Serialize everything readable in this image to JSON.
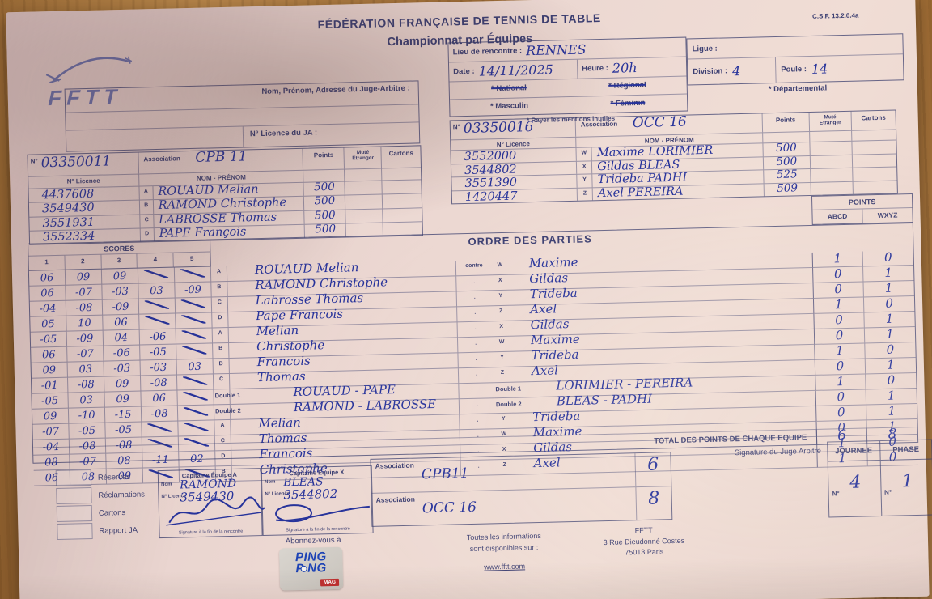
{
  "header": {
    "federation": "FÉDÉRATION FRANÇAISE DE TENNIS DE TABLE",
    "championship": "Championnat par Équipes",
    "form_ref": "C.S.F. 13.2.0.4a",
    "logo_text": "FFTT"
  },
  "judge": {
    "label": "Nom, Prénom, Adresse du Juge-Arbitre :",
    "licence_label": "N° Licence du JA :"
  },
  "match": {
    "lieu_label": "Lieu de rencontre :",
    "lieu": "RENNES",
    "date_label": "Date :",
    "date": "14/11/2025",
    "heure_label": "Heure :",
    "heure": "20h",
    "national": "* National",
    "regional": "* Régional",
    "masculin": "* Masculin",
    "feminin": "* Féminin",
    "rayer_note": "* Rayer les mentions inutiles",
    "ligue_label": "Ligue :",
    "division_label": "Division :",
    "division": "4",
    "poule_label": "Poule :",
    "poule": "14",
    "departemental": "* Départemental"
  },
  "team_headers": {
    "numero_label": "N°",
    "licence_label": "N° Licence",
    "association_label": "Association",
    "nom_label": "NOM - PRÉNOM",
    "points_label": "Points",
    "mute_label": "Muté",
    "etranger_label": "Etranger",
    "cartons_label": "Cartons"
  },
  "team_a": {
    "numero": "03350011",
    "association": "CPB 11",
    "players": [
      {
        "licence": "4437608",
        "letter": "A",
        "name": "ROUAUD Melian",
        "points": "500"
      },
      {
        "licence": "3549430",
        "letter": "B",
        "name": "RAMOND Christophe",
        "points": "500"
      },
      {
        "licence": "3551931",
        "letter": "C",
        "name": "LABROSSE Thomas",
        "points": "500"
      },
      {
        "licence": "3552334",
        "letter": "D",
        "name": "PAPE François",
        "points": "500"
      }
    ]
  },
  "team_x": {
    "numero": "03350016",
    "association": "OCC 16",
    "players": [
      {
        "licence": "3552000",
        "letter": "W",
        "name": "Maxime LORIMIER",
        "points": "500"
      },
      {
        "licence": "3544802",
        "letter": "X",
        "name": "Gildas BLEAS",
        "points": "500"
      },
      {
        "licence": "3551390",
        "letter": "Y",
        "name": "Trideba PADHI",
        "points": "525"
      },
      {
        "licence": "1420447",
        "letter": "Z",
        "name": "Axel PEREIRA",
        "points": "509"
      }
    ]
  },
  "games": {
    "title": "ORDRE DES PARTIES",
    "scores_label": "SCORES",
    "game_cols": [
      "1",
      "2",
      "3",
      "4",
      "5"
    ],
    "contre_label": "contre",
    "dot": "·",
    "points_label": "POINTS",
    "abcd_label": "ABCD",
    "wxyz_label": "WXYZ",
    "total_label": "TOTAL DES POINTS DE CHAQUE EQUIPE",
    "total_abcd": "6",
    "total_wxyz": "8",
    "rows": [
      {
        "scores": [
          "06",
          "09",
          "09",
          "",
          ""
        ],
        "letter": "A",
        "player": "ROUAUD Melian",
        "vs": "W",
        "opponent": "Maxime",
        "pa": "1",
        "px": "0"
      },
      {
        "scores": [
          "06",
          "-07",
          "-03",
          "03",
          "-09"
        ],
        "letter": "B",
        "player": "RAMOND Christophe",
        "vs": "X",
        "opponent": "Gildas",
        "pa": "0",
        "px": "1"
      },
      {
        "scores": [
          "-04",
          "-08",
          "-09",
          "",
          ""
        ],
        "letter": "C",
        "player": "Labrosse Thomas",
        "vs": "Y",
        "opponent": "Trideba",
        "pa": "0",
        "px": "1"
      },
      {
        "scores": [
          "05",
          "10",
          "06",
          "",
          ""
        ],
        "letter": "D",
        "player": "Pape Francois",
        "vs": "Z",
        "opponent": "Axel",
        "pa": "1",
        "px": "0"
      },
      {
        "scores": [
          "-05",
          "-09",
          "04",
          "-06",
          ""
        ],
        "letter": "A",
        "player": "Melian",
        "vs": "X",
        "opponent": "Gildas",
        "pa": "0",
        "px": "1"
      },
      {
        "scores": [
          "06",
          "-07",
          "-06",
          "-05",
          ""
        ],
        "letter": "B",
        "player": "Christophe",
        "vs": "W",
        "opponent": "Maxime",
        "pa": "0",
        "px": "1"
      },
      {
        "scores": [
          "09",
          "03",
          "-03",
          "-03",
          "03"
        ],
        "letter": "D",
        "player": "Francois",
        "vs": "Y",
        "opponent": "Trideba",
        "pa": "1",
        "px": "0"
      },
      {
        "scores": [
          "-01",
          "-08",
          "09",
          "-08",
          ""
        ],
        "letter": "C",
        "player": "Thomas",
        "vs": "Z",
        "opponent": "Axel",
        "pa": "0",
        "px": "1"
      },
      {
        "scores": [
          "-05",
          "03",
          "09",
          "06",
          ""
        ],
        "letter": "Double 1",
        "player": "ROUAUD - PAPE",
        "vs": "Double 1",
        "opponent": "LORIMIER - PEREIRA",
        "pa": "1",
        "px": "0"
      },
      {
        "scores": [
          "09",
          "-10",
          "-15",
          "-08",
          ""
        ],
        "letter": "Double 2",
        "player": "RAMOND - LABROSSE",
        "vs": "Double 2",
        "opponent": "BLEAS - PADHI",
        "pa": "0",
        "px": "1"
      },
      {
        "scores": [
          "-07",
          "-05",
          "-05",
          "",
          ""
        ],
        "letter": "A",
        "player": "Melian",
        "vs": "Y",
        "opponent": "Trideba",
        "pa": "0",
        "px": "1"
      },
      {
        "scores": [
          "-04",
          "-08",
          "-08",
          "",
          ""
        ],
        "letter": "C",
        "player": "Thomas",
        "vs": "W",
        "opponent": "Maxime",
        "pa": "0",
        "px": "1"
      },
      {
        "scores": [
          "08",
          "-07",
          "08",
          "-11",
          "02"
        ],
        "letter": "D",
        "player": "Francois",
        "vs": "X",
        "opponent": "Gildas",
        "pa": "1",
        "px": "0"
      },
      {
        "scores": [
          "06",
          "08",
          "09",
          "",
          ""
        ],
        "letter": "B",
        "player": "Christophe",
        "vs": "Z",
        "opponent": "Axel",
        "pa": "1",
        "px": "0"
      }
    ]
  },
  "bottom": {
    "checkbox_labels": [
      "Réserves",
      "Réclamations",
      "Cartons",
      "Rapport JA"
    ],
    "captain_a": {
      "title": "Capitaine Équipe A",
      "nom_label": "Nom",
      "licence_label": "N° Licence",
      "nom": "RAMOND",
      "licence": "3549430",
      "note": "Signature à la fin de la rencontre"
    },
    "captain_x": {
      "title": "Capitaine Équipe X",
      "nom_label": "Nom",
      "licence_label": "N° Licence",
      "nom": "BLEAS",
      "licence": "3544802",
      "note": "Signature à la fin de la rencontre"
    },
    "assoc_label": "Association",
    "assoc_a": "CPB11",
    "assoc_a_score": "6",
    "assoc_x": "OCC 16",
    "assoc_x_score": "8",
    "ja_signature_label": "Signature du Juge Arbitre",
    "journee_label": "JOURNEE",
    "phase_label": "PHASE",
    "numero_label": "N°",
    "journee": "4",
    "phase": "1"
  },
  "footer": {
    "abonnez": "Abonnez-vous à",
    "logo_line1": "PING",
    "logo_line2": "P NG",
    "logo_mag": "MAG",
    "info_line1": "Toutes les informations",
    "info_line2": "sont disponibles sur :",
    "url": "www.fftt.com",
    "fftt_name": "FFTT",
    "fftt_addr1": "3 Rue Dieudonné Costes",
    "fftt_addr2": "75013 Paris"
  }
}
